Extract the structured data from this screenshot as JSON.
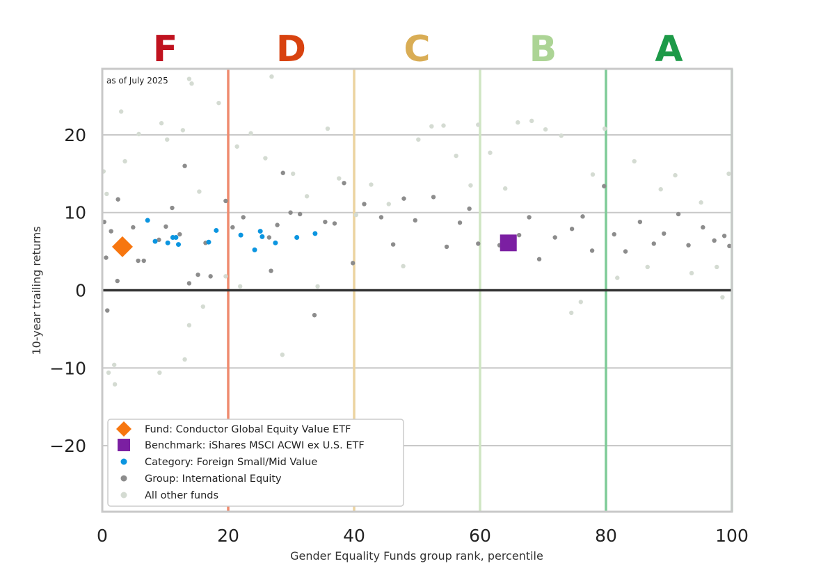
{
  "chart_data": {
    "type": "scatter",
    "annotation": "as of July 2025",
    "xlabel": "Gender Equality Funds group rank, percentile",
    "ylabel": "10-year trailing returns",
    "xlim": [
      0,
      100
    ],
    "ylim": [
      -28.5,
      28.5
    ],
    "x_ticks": [
      0,
      20,
      40,
      60,
      80,
      100
    ],
    "y_ticks": [
      20,
      10,
      0,
      -10,
      -20
    ],
    "x_tick_labels": [
      "0",
      "20",
      "40",
      "60",
      "80",
      "100"
    ],
    "y_tick_labels": [
      "20",
      "10",
      "0",
      "−10",
      "−20"
    ],
    "grid": "horizontal",
    "legend_position": "lower-left",
    "zero_line_color": "#333333",
    "grades": [
      {
        "label": "F",
        "x_center": 10,
        "color": "#c0121f",
        "boundary_x": 20,
        "boundary_color": "#ef8b6f"
      },
      {
        "label": "D",
        "x_center": 30,
        "color": "#d8420f",
        "boundary_x": 40,
        "boundary_color": "#ecd4a0"
      },
      {
        "label": "C",
        "x_center": 50,
        "color": "#d9ad55",
        "boundary_x": 60,
        "boundary_color": "#cfe6c3"
      },
      {
        "label": "B",
        "x_center": 70,
        "color": "#acd495",
        "boundary_x": 80,
        "boundary_color": "#7ecb97"
      },
      {
        "label": "A",
        "x_center": 90,
        "color": "#1d9a48",
        "boundary_x": 100,
        "boundary_color": "#a4d7b2"
      }
    ],
    "series": [
      {
        "name": "Fund: Conductor Global Equity Value ETF",
        "marker": "diamond",
        "color": "#f7760f",
        "points": [
          {
            "x": 3.2,
            "y": 5.6
          }
        ]
      },
      {
        "name": "Benchmark: iShares MSCI ACWI ex U.S. ETF",
        "marker": "square",
        "color": "#7b1fa2",
        "points": [
          {
            "x": 64.5,
            "y": 6.1
          }
        ]
      },
      {
        "name": "Category: Foreign Small/Mid Value",
        "marker": "dot",
        "color": "#0b95e0",
        "points": [
          {
            "x": 7.2,
            "y": 9.0
          },
          {
            "x": 8.4,
            "y": 6.3
          },
          {
            "x": 10.4,
            "y": 6.1
          },
          {
            "x": 11.2,
            "y": 6.8
          },
          {
            "x": 11.7,
            "y": 6.8
          },
          {
            "x": 12.1,
            "y": 5.9
          },
          {
            "x": 16.9,
            "y": 6.2
          },
          {
            "x": 18.1,
            "y": 7.7
          },
          {
            "x": 22.0,
            "y": 7.1
          },
          {
            "x": 24.2,
            "y": 5.2
          },
          {
            "x": 25.1,
            "y": 7.6
          },
          {
            "x": 25.4,
            "y": 6.9
          },
          {
            "x": 27.5,
            "y": 6.1
          },
          {
            "x": 30.9,
            "y": 6.8
          },
          {
            "x": 33.8,
            "y": 7.3
          }
        ]
      },
      {
        "name": "Group: International Equity",
        "marker": "dot",
        "color": "#8c8c8c",
        "points": [
          {
            "x": 0.3,
            "y": 8.8
          },
          {
            "x": 0.6,
            "y": 4.2
          },
          {
            "x": 0.8,
            "y": -2.6
          },
          {
            "x": 1.4,
            "y": 7.6
          },
          {
            "x": 2.5,
            "y": 11.7
          },
          {
            "x": 2.4,
            "y": 1.2
          },
          {
            "x": 4.9,
            "y": 8.1
          },
          {
            "x": 5.7,
            "y": 3.8
          },
          {
            "x": 6.6,
            "y": 3.8
          },
          {
            "x": 9.0,
            "y": 6.5
          },
          {
            "x": 10.1,
            "y": 8.2
          },
          {
            "x": 11.1,
            "y": 10.6
          },
          {
            "x": 12.3,
            "y": 7.2
          },
          {
            "x": 13.1,
            "y": 16.0
          },
          {
            "x": 13.8,
            "y": 0.9
          },
          {
            "x": 15.2,
            "y": 2.0
          },
          {
            "x": 16.4,
            "y": 6.1
          },
          {
            "x": 17.2,
            "y": 1.8
          },
          {
            "x": 19.6,
            "y": 11.5
          },
          {
            "x": 20.7,
            "y": 8.1
          },
          {
            "x": 22.4,
            "y": 9.4
          },
          {
            "x": 26.5,
            "y": 6.8
          },
          {
            "x": 26.8,
            "y": 2.5
          },
          {
            "x": 27.8,
            "y": 8.4
          },
          {
            "x": 28.7,
            "y": 15.1
          },
          {
            "x": 29.9,
            "y": 10.0
          },
          {
            "x": 31.4,
            "y": 9.8
          },
          {
            "x": 33.7,
            "y": -3.2
          },
          {
            "x": 35.4,
            "y": 8.8
          },
          {
            "x": 36.9,
            "y": 8.6
          },
          {
            "x": 38.4,
            "y": 13.8
          },
          {
            "x": 39.8,
            "y": 3.5
          },
          {
            "x": 41.6,
            "y": 11.1
          },
          {
            "x": 44.3,
            "y": 9.4
          },
          {
            "x": 46.2,
            "y": 5.9
          },
          {
            "x": 47.9,
            "y": 11.8
          },
          {
            "x": 49.7,
            "y": 9.0
          },
          {
            "x": 52.6,
            "y": 12.0
          },
          {
            "x": 54.7,
            "y": 5.6
          },
          {
            "x": 56.8,
            "y": 8.7
          },
          {
            "x": 58.3,
            "y": 10.5
          },
          {
            "x": 59.7,
            "y": 6.0
          },
          {
            "x": 63.1,
            "y": 5.8
          },
          {
            "x": 66.2,
            "y": 7.1
          },
          {
            "x": 67.8,
            "y": 9.4
          },
          {
            "x": 69.4,
            "y": 4.0
          },
          {
            "x": 71.9,
            "y": 6.8
          },
          {
            "x": 74.6,
            "y": 7.9
          },
          {
            "x": 76.3,
            "y": 9.5
          },
          {
            "x": 77.8,
            "y": 5.1
          },
          {
            "x": 79.7,
            "y": 13.4
          },
          {
            "x": 81.3,
            "y": 7.2
          },
          {
            "x": 83.1,
            "y": 5.0
          },
          {
            "x": 85.4,
            "y": 8.8
          },
          {
            "x": 87.6,
            "y": 6.0
          },
          {
            "x": 89.2,
            "y": 7.3
          },
          {
            "x": 91.5,
            "y": 9.8
          },
          {
            "x": 93.1,
            "y": 5.8
          },
          {
            "x": 95.4,
            "y": 8.1
          },
          {
            "x": 97.2,
            "y": 6.4
          },
          {
            "x": 98.8,
            "y": 7.0
          },
          {
            "x": 99.6,
            "y": 5.7
          }
        ]
      },
      {
        "name": "All other funds",
        "marker": "dot",
        "color": "#d4dbd2",
        "points": [
          {
            "x": 0.2,
            "y": 15.3
          },
          {
            "x": 0.7,
            "y": 12.4
          },
          {
            "x": 1.0,
            "y": -10.6
          },
          {
            "x": 1.9,
            "y": -9.6
          },
          {
            "x": 2.0,
            "y": -12.1
          },
          {
            "x": 3.0,
            "y": 23.0
          },
          {
            "x": 3.6,
            "y": 16.6
          },
          {
            "x": 5.8,
            "y": 20.1
          },
          {
            "x": 9.1,
            "y": -10.6
          },
          {
            "x": 9.4,
            "y": 21.5
          },
          {
            "x": 10.3,
            "y": 19.4
          },
          {
            "x": 12.8,
            "y": 20.6
          },
          {
            "x": 13.1,
            "y": -8.9
          },
          {
            "x": 13.8,
            "y": -4.5
          },
          {
            "x": 13.8,
            "y": 27.2
          },
          {
            "x": 14.2,
            "y": 26.6
          },
          {
            "x": 15.4,
            "y": 12.7
          },
          {
            "x": 16.0,
            "y": -2.1
          },
          {
            "x": 18.5,
            "y": 24.1
          },
          {
            "x": 19.6,
            "y": 1.8
          },
          {
            "x": 21.4,
            "y": 18.5
          },
          {
            "x": 21.9,
            "y": 0.5
          },
          {
            "x": 23.6,
            "y": 20.2
          },
          {
            "x": 25.9,
            "y": 17.0
          },
          {
            "x": 26.9,
            "y": 27.5
          },
          {
            "x": 28.6,
            "y": -8.3
          },
          {
            "x": 30.3,
            "y": 15.0
          },
          {
            "x": 32.5,
            "y": 12.1
          },
          {
            "x": 34.2,
            "y": 0.5
          },
          {
            "x": 35.8,
            "y": 20.8
          },
          {
            "x": 37.6,
            "y": 14.4
          },
          {
            "x": 40.3,
            "y": 9.7
          },
          {
            "x": 42.7,
            "y": 13.6
          },
          {
            "x": 45.5,
            "y": 11.1
          },
          {
            "x": 47.8,
            "y": 3.1
          },
          {
            "x": 50.2,
            "y": 19.4
          },
          {
            "x": 52.3,
            "y": 21.1
          },
          {
            "x": 54.2,
            "y": 21.2
          },
          {
            "x": 56.2,
            "y": 17.3
          },
          {
            "x": 58.5,
            "y": 13.5
          },
          {
            "x": 59.7,
            "y": 21.3
          },
          {
            "x": 61.6,
            "y": 17.7
          },
          {
            "x": 64.0,
            "y": 13.1
          },
          {
            "x": 66.0,
            "y": 21.6
          },
          {
            "x": 68.2,
            "y": 21.8
          },
          {
            "x": 70.4,
            "y": 20.7
          },
          {
            "x": 72.9,
            "y": 19.9
          },
          {
            "x": 74.5,
            "y": -2.9
          },
          {
            "x": 76.0,
            "y": -1.5
          },
          {
            "x": 77.9,
            "y": 14.9
          },
          {
            "x": 79.8,
            "y": 20.8
          },
          {
            "x": 81.8,
            "y": 1.6
          },
          {
            "x": 84.5,
            "y": 16.6
          },
          {
            "x": 86.6,
            "y": 3.0
          },
          {
            "x": 88.7,
            "y": 13.0
          },
          {
            "x": 91.0,
            "y": 14.8
          },
          {
            "x": 93.6,
            "y": 2.2
          },
          {
            "x": 95.1,
            "y": 11.3
          },
          {
            "x": 97.6,
            "y": 3.0
          },
          {
            "x": 98.5,
            "y": -0.9
          },
          {
            "x": 99.5,
            "y": 15.0
          }
        ]
      }
    ]
  }
}
